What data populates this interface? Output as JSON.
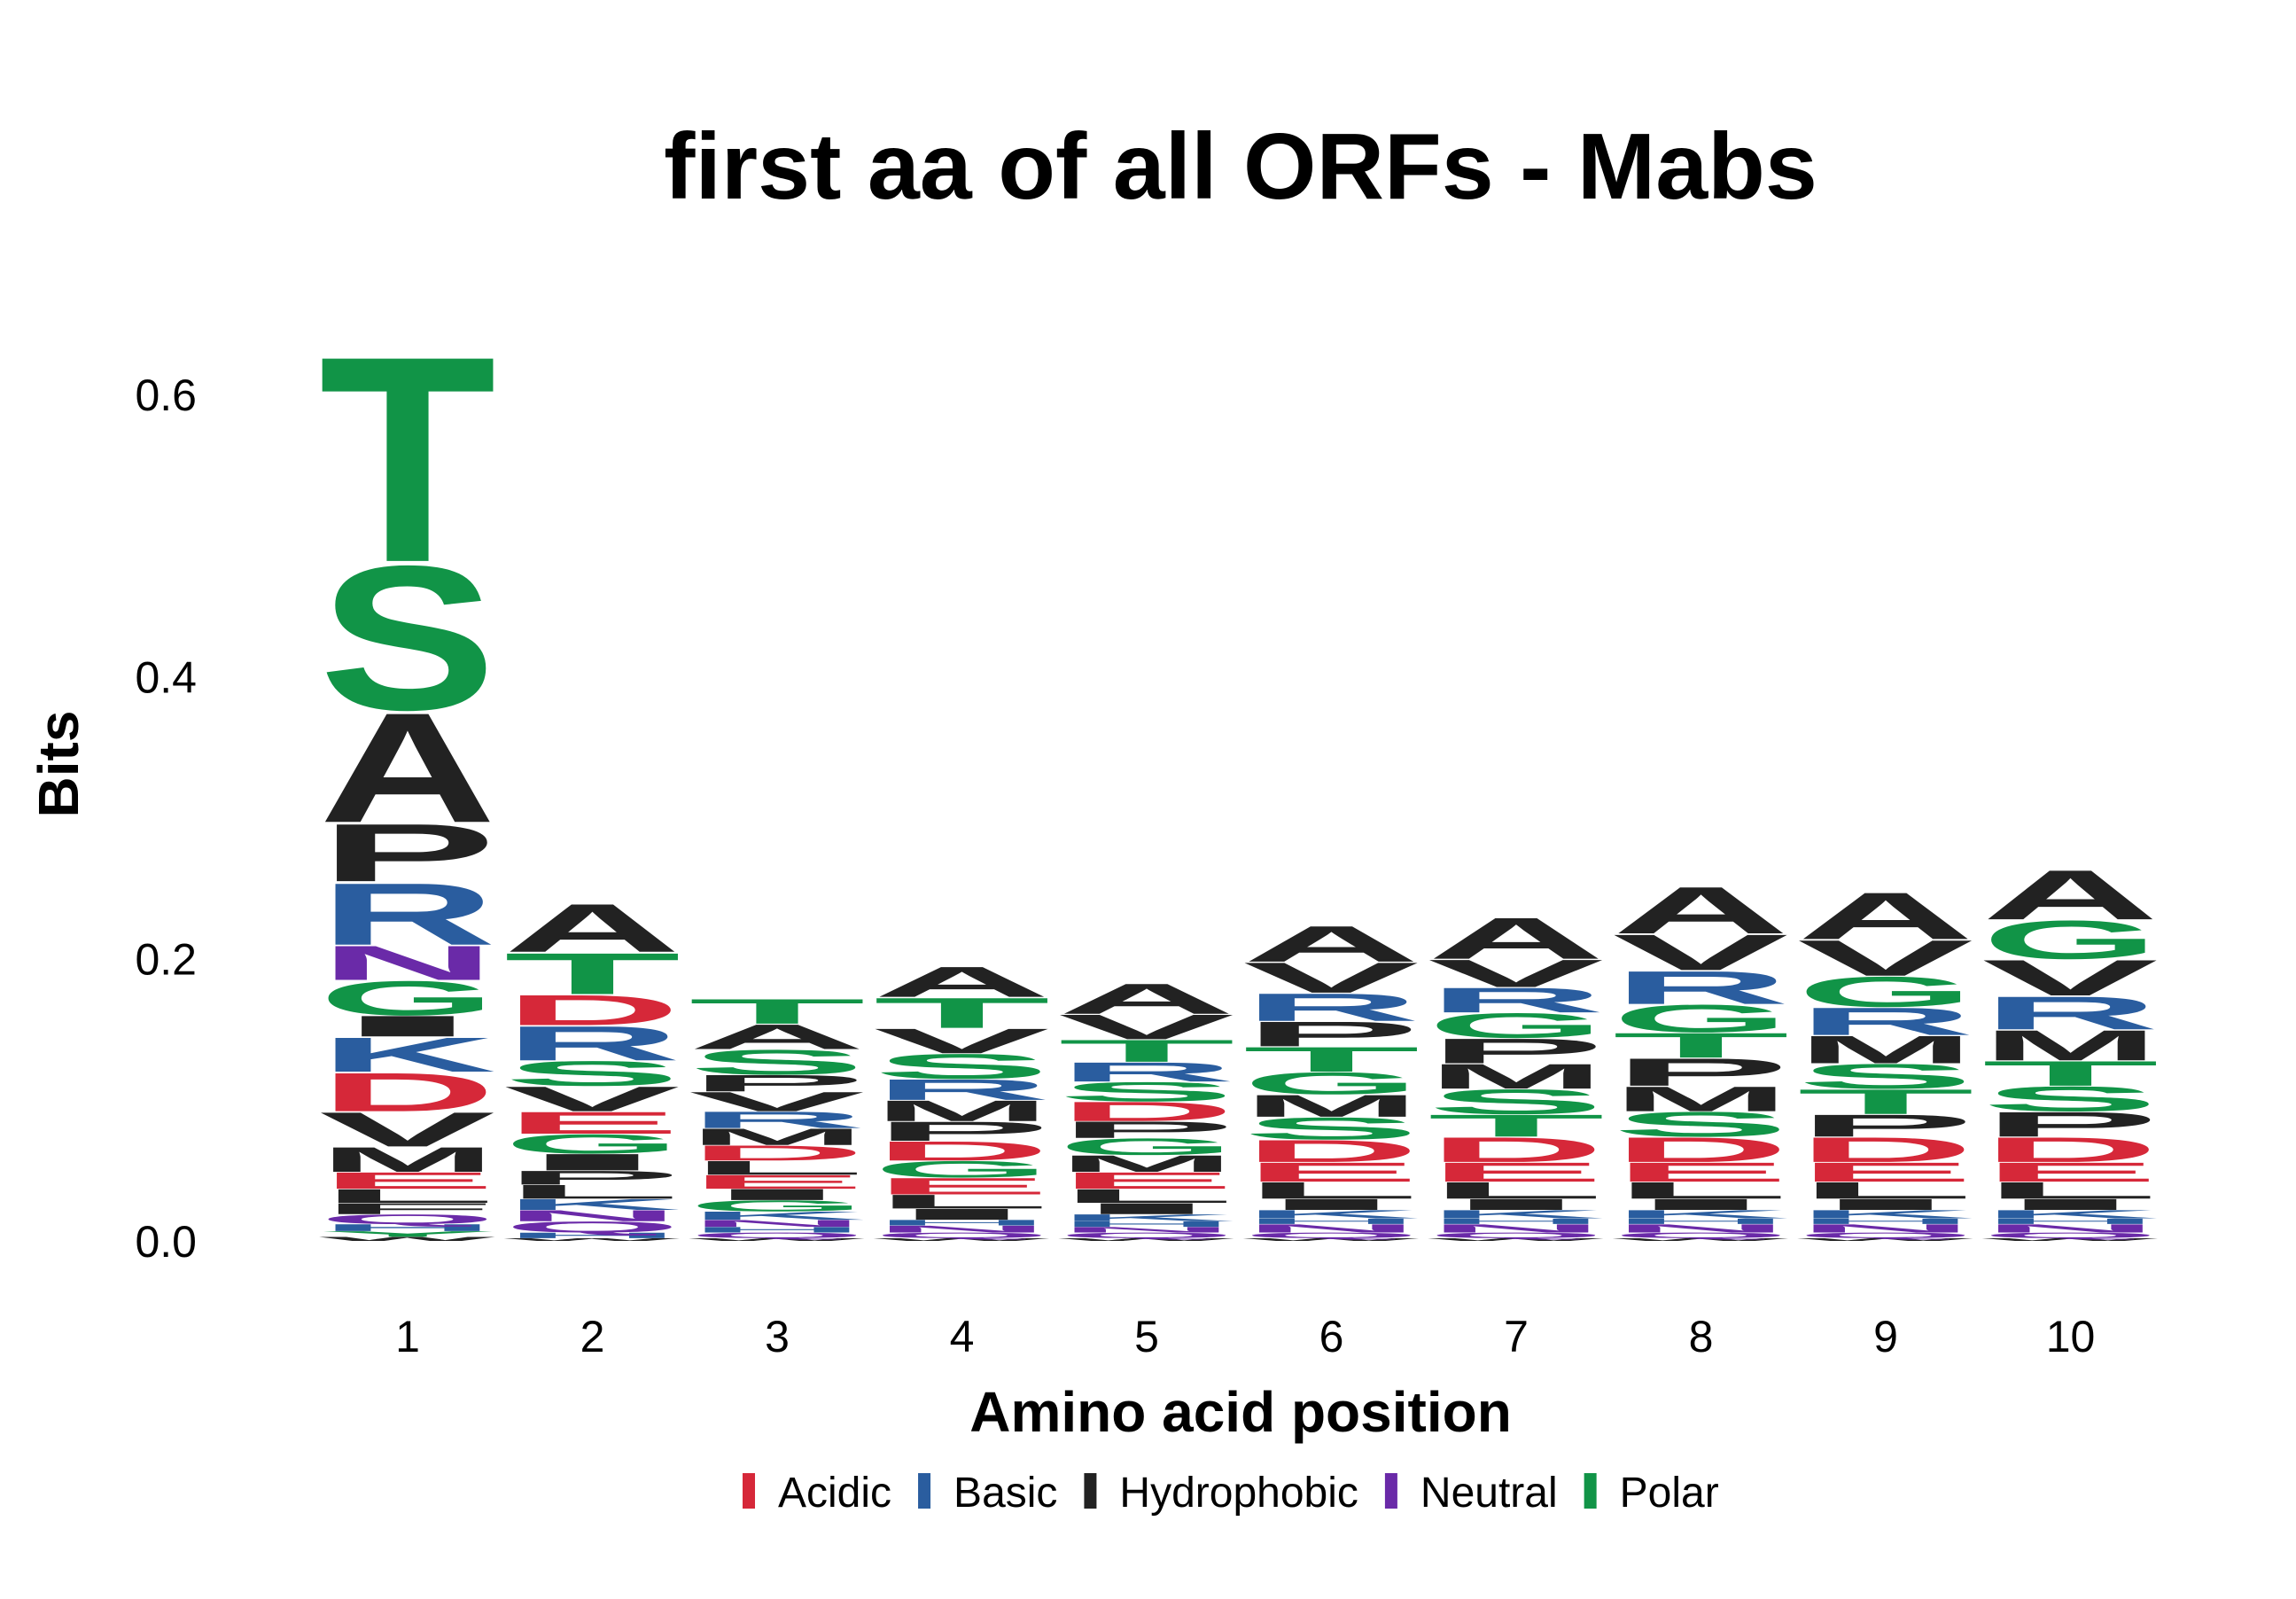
{
  "chart_data": {
    "type": "sequence-logo",
    "title": "first aa of all ORFs - Mabs",
    "xlabel": "Amino acid position",
    "ylabel": "Bits",
    "x_ticks": [
      "1",
      "2",
      "3",
      "4",
      "5",
      "6",
      "7",
      "8",
      "9",
      "10"
    ],
    "y_ticks": [
      "0.0",
      "0.2",
      "0.4",
      "0.6"
    ],
    "ylim": [
      0,
      0.65
    ],
    "grid": false,
    "legend_position": "bottom",
    "color_groups": [
      {
        "name": "Acidic",
        "color": "#d62839"
      },
      {
        "name": "Basic",
        "color": "#2a5d9f"
      },
      {
        "name": "Hydrophobic",
        "color": "#222222"
      },
      {
        "name": "Neutral",
        "color": "#6a2aa8"
      },
      {
        "name": "Polar",
        "color": "#119447"
      }
    ],
    "residue_group": {
      "D": "Acidic",
      "E": "Acidic",
      "R": "Basic",
      "K": "Basic",
      "H": "Basic",
      "A": "Hydrophobic",
      "V": "Hydrophobic",
      "L": "Hydrophobic",
      "I": "Hydrophobic",
      "M": "Hydrophobic",
      "P": "Hydrophobic",
      "F": "Hydrophobic",
      "W": "Hydrophobic",
      "N": "Neutral",
      "Q": "Neutral",
      "S": "Polar",
      "T": "Polar",
      "G": "Polar",
      "Y": "Polar",
      "C": "Polar"
    },
    "positions": [
      {
        "pos": "1",
        "letters": [
          [
            "W",
            0.003
          ],
          [
            "Y",
            0.004
          ],
          [
            "H",
            0.005
          ],
          [
            "Q",
            0.007
          ],
          [
            "F",
            0.008
          ],
          [
            "L",
            0.01
          ],
          [
            "E",
            0.012
          ],
          [
            "M",
            0.018
          ],
          [
            "V",
            0.025
          ],
          [
            "D",
            0.028
          ],
          [
            "K",
            0.025
          ],
          [
            "I",
            0.015
          ],
          [
            "G",
            0.025
          ],
          [
            "N",
            0.025
          ],
          [
            "R",
            0.045
          ],
          [
            "P",
            0.042
          ],
          [
            "A",
            0.08
          ],
          [
            "S",
            0.105
          ],
          [
            "T",
            0.15
          ]
        ]
      },
      {
        "pos": "2",
        "letters": [
          [
            "W",
            0.002
          ],
          [
            "H",
            0.004
          ],
          [
            "Q",
            0.008
          ],
          [
            "N",
            0.008
          ],
          [
            "K",
            0.008
          ],
          [
            "L",
            0.01
          ],
          [
            "P",
            0.01
          ],
          [
            "I",
            0.012
          ],
          [
            "G",
            0.014
          ],
          [
            "E",
            0.016
          ],
          [
            "V",
            0.018
          ],
          [
            "S",
            0.018
          ],
          [
            "R",
            0.025
          ],
          [
            "D",
            0.022
          ],
          [
            "T",
            0.03
          ],
          [
            "A",
            0.035
          ]
        ]
      },
      {
        "pos": "3",
        "letters": [
          [
            "W",
            0.002
          ],
          [
            "Q",
            0.004
          ],
          [
            "H",
            0.004
          ],
          [
            "N",
            0.005
          ],
          [
            "K",
            0.006
          ],
          [
            "G",
            0.008
          ],
          [
            "I",
            0.008
          ],
          [
            "E",
            0.01
          ],
          [
            "L",
            0.01
          ],
          [
            "D",
            0.011
          ],
          [
            "M",
            0.012
          ],
          [
            "R",
            0.012
          ],
          [
            "V",
            0.014
          ],
          [
            "P",
            0.012
          ],
          [
            "S",
            0.018
          ],
          [
            "A",
            0.018
          ],
          [
            "T",
            0.018
          ]
        ]
      },
      {
        "pos": "4",
        "letters": [
          [
            "W",
            0.002
          ],
          [
            "Q",
            0.004
          ],
          [
            "N",
            0.005
          ],
          [
            "H",
            0.004
          ],
          [
            "I",
            0.008
          ],
          [
            "L",
            0.01
          ],
          [
            "E",
            0.012
          ],
          [
            "G",
            0.012
          ],
          [
            "D",
            0.014
          ],
          [
            "P",
            0.014
          ],
          [
            "M",
            0.015
          ],
          [
            "R",
            0.015
          ],
          [
            "S",
            0.018
          ],
          [
            "V",
            0.018
          ],
          [
            "T",
            0.022
          ],
          [
            "A",
            0.022
          ]
        ]
      },
      {
        "pos": "5",
        "letters": [
          [
            "W",
            0.002
          ],
          [
            "Q",
            0.004
          ],
          [
            "N",
            0.004
          ],
          [
            "H",
            0.004
          ],
          [
            "K",
            0.005
          ],
          [
            "I",
            0.008
          ],
          [
            "L",
            0.01
          ],
          [
            "E",
            0.012
          ],
          [
            "M",
            0.012
          ],
          [
            "G",
            0.012
          ],
          [
            "P",
            0.012
          ],
          [
            "D",
            0.014
          ],
          [
            "S",
            0.014
          ],
          [
            "R",
            0.014
          ],
          [
            "T",
            0.016
          ],
          [
            "V",
            0.018
          ],
          [
            "A",
            0.022
          ]
        ]
      },
      {
        "pos": "6",
        "letters": [
          [
            "W",
            0.002
          ],
          [
            "Q",
            0.004
          ],
          [
            "N",
            0.006
          ],
          [
            "H",
            0.004
          ],
          [
            "K",
            0.006
          ],
          [
            "I",
            0.008
          ],
          [
            "L",
            0.012
          ],
          [
            "E",
            0.014
          ],
          [
            "D",
            0.016
          ],
          [
            "S",
            0.016
          ],
          [
            "M",
            0.016
          ],
          [
            "G",
            0.016
          ],
          [
            "T",
            0.018
          ],
          [
            "P",
            0.018
          ],
          [
            "R",
            0.02
          ],
          [
            "V",
            0.022
          ],
          [
            "A",
            0.026
          ]
        ]
      },
      {
        "pos": "7",
        "letters": [
          [
            "W",
            0.002
          ],
          [
            "Q",
            0.004
          ],
          [
            "N",
            0.006
          ],
          [
            "H",
            0.004
          ],
          [
            "K",
            0.006
          ],
          [
            "I",
            0.008
          ],
          [
            "L",
            0.012
          ],
          [
            "E",
            0.014
          ],
          [
            "D",
            0.018
          ],
          [
            "T",
            0.016
          ],
          [
            "S",
            0.018
          ],
          [
            "M",
            0.018
          ],
          [
            "P",
            0.018
          ],
          [
            "G",
            0.018
          ],
          [
            "R",
            0.018
          ],
          [
            "V",
            0.02
          ],
          [
            "A",
            0.03
          ]
        ]
      },
      {
        "pos": "8",
        "letters": [
          [
            "W",
            0.002
          ],
          [
            "Q",
            0.004
          ],
          [
            "N",
            0.006
          ],
          [
            "H",
            0.004
          ],
          [
            "K",
            0.006
          ],
          [
            "I",
            0.008
          ],
          [
            "L",
            0.012
          ],
          [
            "E",
            0.014
          ],
          [
            "D",
            0.018
          ],
          [
            "S",
            0.018
          ],
          [
            "M",
            0.018
          ],
          [
            "P",
            0.02
          ],
          [
            "T",
            0.018
          ],
          [
            "G",
            0.02
          ],
          [
            "R",
            0.024
          ],
          [
            "V",
            0.026
          ],
          [
            "A",
            0.034
          ]
        ]
      },
      {
        "pos": "9",
        "letters": [
          [
            "W",
            0.002
          ],
          [
            "Q",
            0.004
          ],
          [
            "N",
            0.006
          ],
          [
            "H",
            0.004
          ],
          [
            "K",
            0.006
          ],
          [
            "I",
            0.008
          ],
          [
            "L",
            0.012
          ],
          [
            "E",
            0.014
          ],
          [
            "D",
            0.018
          ],
          [
            "P",
            0.016
          ],
          [
            "T",
            0.018
          ],
          [
            "S",
            0.018
          ],
          [
            "M",
            0.02
          ],
          [
            "R",
            0.02
          ],
          [
            "G",
            0.022
          ],
          [
            "V",
            0.026
          ],
          [
            "A",
            0.034
          ]
        ]
      },
      {
        "pos": "10",
        "letters": [
          [
            "W",
            0.002
          ],
          [
            "Q",
            0.004
          ],
          [
            "N",
            0.006
          ],
          [
            "H",
            0.004
          ],
          [
            "K",
            0.006
          ],
          [
            "I",
            0.008
          ],
          [
            "L",
            0.012
          ],
          [
            "E",
            0.014
          ],
          [
            "D",
            0.018
          ],
          [
            "P",
            0.018
          ],
          [
            "S",
            0.018
          ],
          [
            "T",
            0.018
          ],
          [
            "M",
            0.022
          ],
          [
            "R",
            0.024
          ],
          [
            "V",
            0.026
          ],
          [
            "G",
            0.028
          ],
          [
            "A",
            0.036
          ]
        ]
      }
    ]
  }
}
